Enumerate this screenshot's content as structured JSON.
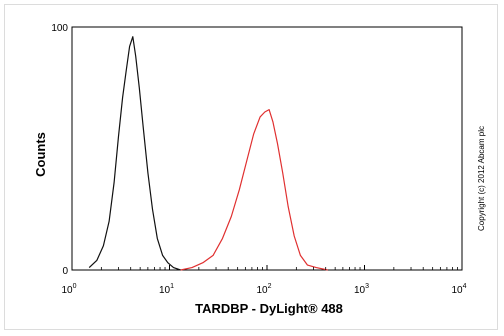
{
  "chart_data": {
    "type": "line",
    "title": "",
    "xlabel": "TARDBP - DyLight® 488",
    "ylabel": "Counts",
    "xscale": "log",
    "xlim": [
      1,
      10000
    ],
    "ylim": [
      0,
      100
    ],
    "grid": false,
    "x_ticks": [
      {
        "value": 1,
        "base": "10",
        "exp": "0"
      },
      {
        "value": 10,
        "base": "10",
        "exp": "1"
      },
      {
        "value": 100,
        "base": "10",
        "exp": "2"
      },
      {
        "value": 1000,
        "base": "10",
        "exp": "3"
      },
      {
        "value": 10000,
        "base": "10",
        "exp": "4"
      }
    ],
    "y_ticks": [
      {
        "value": 0,
        "label": "0"
      },
      {
        "value": 100,
        "label": "100"
      }
    ],
    "series": [
      {
        "color": "#111111",
        "x": [
          1.5,
          1.8,
          2.1,
          2.4,
          2.7,
          3.0,
          3.3,
          3.6,
          3.9,
          4.2,
          4.5,
          4.9,
          5.4,
          6.0,
          6.7,
          7.5,
          8.5,
          9.6,
          11.0,
          13.0
        ],
        "y": [
          1,
          4,
          10,
          20,
          36,
          55,
          71,
          82,
          92,
          96,
          88,
          75,
          58,
          40,
          25,
          13,
          6,
          3,
          1,
          0
        ]
      },
      {
        "color": "#e03030",
        "x": [
          13.0,
          17.0,
          22.0,
          28.0,
          35.0,
          43.0,
          52.0,
          62.0,
          73.0,
          85.0,
          95.0,
          105.0,
          115.0,
          128.0,
          145.0,
          165.0,
          190.0,
          220.0,
          260.0,
          320.0,
          420.0
        ],
        "y": [
          0,
          1,
          3,
          6,
          13,
          22,
          33,
          45,
          56,
          63,
          65,
          66,
          61,
          52,
          40,
          26,
          14,
          6,
          2,
          1,
          0
        ]
      }
    ]
  },
  "copyright": "Copyright (c) 2012 Abcam plc"
}
